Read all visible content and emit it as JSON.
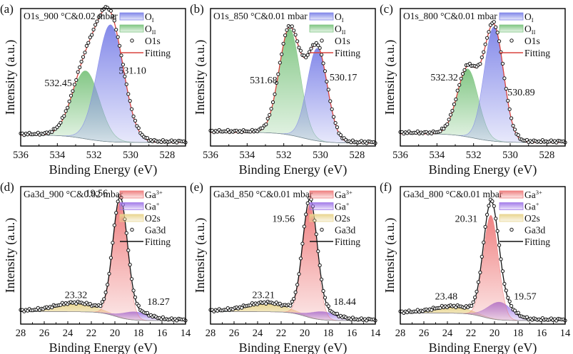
{
  "figure": {
    "panel_count": 6
  },
  "chart_data": [
    {
      "panel": "(a)",
      "type": "area",
      "title": "O1s_900 °C&0.02 mbar",
      "xlabel": "Binding Energy (eV)",
      "ylabel": "Intensity (a.u.)",
      "xlim": [
        536,
        527
      ],
      "xticks": [
        536,
        534,
        532,
        530,
        528
      ],
      "ylim": [
        0,
        1.0
      ],
      "legend_position": "top-right",
      "legend": [
        {
          "label": "O",
          "sub": "I",
          "kind": "fill",
          "color": "#7d83e8"
        },
        {
          "label": "O",
          "sub": "II",
          "kind": "fill",
          "color": "#7cc47f"
        },
        {
          "label": "O1s",
          "kind": "marker"
        },
        {
          "label": "Fitting",
          "kind": "line",
          "color": "#d9443f"
        }
      ],
      "background": {
        "start": 0.06,
        "end": 0.005,
        "center": 532.5
      },
      "peaks": [
        {
          "name": "O_II",
          "center": 532.45,
          "height": 0.5,
          "fwhm": 1.75,
          "color": "#7cc47f",
          "label": "532.45"
        },
        {
          "name": "O_I",
          "center": 531.1,
          "height": 0.86,
          "fwhm": 1.7,
          "color": "#7d83e8",
          "label": "531.10"
        }
      ],
      "annotations": [
        {
          "text": "532.45",
          "x": 533.95,
          "y": 0.42
        },
        {
          "text": "531.10",
          "x": 529.9,
          "y": 0.51
        }
      ],
      "fit_color": "#d9443f",
      "marker_edge": "#111111"
    },
    {
      "panel": "(b)",
      "type": "area",
      "title": "O1s_850 °C&0.01 mbar",
      "xlabel": "Binding Energy (eV)",
      "ylabel": "Intensity (a.u.)",
      "xlim": [
        536,
        527
      ],
      "xticks": [
        536,
        534,
        532,
        530,
        528
      ],
      "ylim": [
        0,
        1.0
      ],
      "legend_position": "top-right",
      "legend": [
        {
          "label": "O",
          "sub": "I",
          "kind": "fill",
          "color": "#7d83e8"
        },
        {
          "label": "O",
          "sub": "II",
          "kind": "fill",
          "color": "#7cc47f"
        },
        {
          "label": "O1s",
          "kind": "marker"
        },
        {
          "label": "Fitting",
          "kind": "line",
          "color": "#d9443f"
        }
      ],
      "background": {
        "start": 0.08,
        "end": 0.0,
        "center": 531.0
      },
      "peaks": [
        {
          "name": "O_II",
          "center": 531.68,
          "height": 0.78,
          "fwhm": 1.35,
          "color": "#7cc47f",
          "label": "531.68"
        },
        {
          "name": "O_I",
          "center": 530.17,
          "height": 0.68,
          "fwhm": 1.3,
          "color": "#7d83e8",
          "label": "530.17"
        }
      ],
      "annotations": [
        {
          "text": "531.68",
          "x": 533.1,
          "y": 0.44
        },
        {
          "text": "530.17",
          "x": 528.75,
          "y": 0.46
        }
      ],
      "fit_color": "#d9443f",
      "marker_edge": "#111111"
    },
    {
      "panel": "(c)",
      "type": "area",
      "title": "O1s_800 °C&0.01 mbar",
      "xlabel": "Binding Energy (eV)",
      "ylabel": "Intensity (a.u.)",
      "xlim": [
        536,
        527
      ],
      "xticks": [
        536,
        534,
        532,
        530,
        528
      ],
      "ylim": [
        0,
        1.0
      ],
      "legend_position": "top-right",
      "legend": [
        {
          "label": "O",
          "sub": "I",
          "kind": "fill",
          "color": "#7d83e8"
        },
        {
          "label": "O",
          "sub": "II",
          "kind": "fill",
          "color": "#7cc47f"
        },
        {
          "label": "O1s",
          "kind": "marker"
        },
        {
          "label": "Fitting",
          "kind": "line",
          "color": "#d9443f"
        }
      ],
      "background": {
        "start": 0.07,
        "end": 0.005,
        "center": 532.0
      },
      "peaks": [
        {
          "name": "O_II",
          "center": 532.32,
          "height": 0.5,
          "fwhm": 1.35,
          "color": "#7cc47f",
          "label": "532.32"
        },
        {
          "name": "O_I",
          "center": 530.89,
          "height": 0.84,
          "fwhm": 1.25,
          "color": "#7d83e8",
          "label": "530.89"
        }
      ],
      "annotations": [
        {
          "text": "532.32",
          "x": 533.6,
          "y": 0.46
        },
        {
          "text": "530.89",
          "x": 529.4,
          "y": 0.35
        }
      ],
      "fit_color": "#d9443f",
      "marker_edge": "#111111"
    },
    {
      "panel": "(d)",
      "type": "area",
      "title": "Ga3d_900 °C&0.02 mbar",
      "xlabel": "Binding Energy (eV)",
      "ylabel": "Intensity (a.u.)",
      "xlim": [
        28,
        14
      ],
      "xticks": [
        28,
        26,
        24,
        22,
        20,
        18,
        16,
        14
      ],
      "ylim": [
        0,
        1.0
      ],
      "legend_position": "top-right",
      "legend": [
        {
          "label": "Ga",
          "sup": "3+",
          "kind": "fill",
          "color": "#ee7b7b"
        },
        {
          "label": "Ga",
          "sup": "+",
          "kind": "fill",
          "color": "#a078e8"
        },
        {
          "label": "O2s",
          "kind": "fill",
          "color": "#e8d48c"
        },
        {
          "label": "Ga3d",
          "kind": "marker"
        },
        {
          "label": "Fitting",
          "kind": "line",
          "color": "#111111"
        }
      ],
      "background": {
        "start": 0.07,
        "end": 0.005,
        "center": 20.0
      },
      "peaks": [
        {
          "name": "O2s",
          "center": 23.32,
          "height": 0.06,
          "fwhm": 4.0,
          "color": "#e8d48c",
          "label": "23.32"
        },
        {
          "name": "Ga+",
          "center": 18.27,
          "height": 0.06,
          "fwhm": 2.6,
          "color": "#a078e8",
          "label": "18.27"
        },
        {
          "name": "Ga3+",
          "center": 19.56,
          "height": 0.85,
          "fwhm": 1.45,
          "color": "#ee7b7b",
          "label": "19.56"
        }
      ],
      "annotations": [
        {
          "text": "19.56",
          "x": 21.55,
          "y": 0.92
        },
        {
          "text": "23.32",
          "x": 23.3,
          "y": 0.17
        },
        {
          "text": "18.27",
          "x": 16.3,
          "y": 0.12
        }
      ],
      "fit_color": "#111111",
      "marker_edge": "#111111"
    },
    {
      "panel": "(e)",
      "type": "area",
      "title": "Ga3d_850 °C&0.01 mbar",
      "xlabel": "Binding Energy (eV)",
      "ylabel": "Intensity (a.u.)",
      "xlim": [
        28,
        14
      ],
      "xticks": [
        28,
        26,
        24,
        22,
        20,
        18,
        16,
        14
      ],
      "ylim": [
        0,
        1.0
      ],
      "legend_position": "top-right",
      "legend": [
        {
          "label": "Ga",
          "sup": "3+",
          "kind": "fill",
          "color": "#ee7b7b"
        },
        {
          "label": "Ga",
          "sup": "+",
          "kind": "fill",
          "color": "#a078e8"
        },
        {
          "label": "O2s",
          "kind": "fill",
          "color": "#e8d48c"
        },
        {
          "label": "Ga3d",
          "kind": "marker"
        },
        {
          "label": "Fitting",
          "kind": "line",
          "color": "#111111"
        }
      ],
      "background": {
        "start": 0.07,
        "end": 0.005,
        "center": 20.0
      },
      "peaks": [
        {
          "name": "O2s",
          "center": 23.21,
          "height": 0.06,
          "fwhm": 4.0,
          "color": "#e8d48c",
          "label": "23.21"
        },
        {
          "name": "Ga+",
          "center": 18.44,
          "height": 0.06,
          "fwhm": 2.6,
          "color": "#a078e8",
          "label": "18.44"
        },
        {
          "name": "Ga3+",
          "center": 19.56,
          "height": 0.83,
          "fwhm": 1.45,
          "color": "#ee7b7b",
          "label": "19.56"
        }
      ],
      "annotations": [
        {
          "text": "19.56",
          "x": 21.8,
          "y": 0.73
        },
        {
          "text": "23.21",
          "x": 23.5,
          "y": 0.17
        },
        {
          "text": "18.44",
          "x": 16.6,
          "y": 0.12
        }
      ],
      "fit_color": "#111111",
      "marker_edge": "#111111"
    },
    {
      "panel": "(f)",
      "type": "area",
      "title": "Ga3d_800 °C&0.01 mbar",
      "xlabel": "Binding Energy (eV)",
      "ylabel": "Intensity (a.u.)",
      "xlim": [
        28,
        14
      ],
      "xticks": [
        28,
        26,
        24,
        22,
        20,
        18,
        16,
        14
      ],
      "ylim": [
        0,
        1.0
      ],
      "legend_position": "top-right",
      "legend": [
        {
          "label": "Ga",
          "sup": "3+",
          "kind": "fill",
          "color": "#ee7b7b"
        },
        {
          "label": "Ga",
          "sup": "+",
          "kind": "fill",
          "color": "#a078e8"
        },
        {
          "label": "O2s",
          "kind": "fill",
          "color": "#e8d48c"
        },
        {
          "label": "Ga3d",
          "kind": "marker"
        },
        {
          "label": "Fitting",
          "kind": "line",
          "color": "#111111"
        }
      ],
      "background": {
        "start": 0.06,
        "end": 0.005,
        "center": 21.0
      },
      "peaks": [
        {
          "name": "O2s",
          "center": 23.48,
          "height": 0.045,
          "fwhm": 3.6,
          "color": "#e8d48c",
          "label": "23.48"
        },
        {
          "name": "Ga+",
          "center": 19.57,
          "height": 0.13,
          "fwhm": 2.4,
          "color": "#a078e8",
          "label": "19.57"
        },
        {
          "name": "Ga3+",
          "center": 20.31,
          "height": 0.76,
          "fwhm": 1.5,
          "color": "#ee7b7b",
          "label": "20.31"
        }
      ],
      "annotations": [
        {
          "text": "20.31",
          "x": 22.4,
          "y": 0.73
        },
        {
          "text": "23.48",
          "x": 24.1,
          "y": 0.16
        },
        {
          "text": "19.57",
          "x": 17.4,
          "y": 0.16
        }
      ],
      "fit_color": "#111111",
      "marker_edge": "#111111"
    }
  ]
}
